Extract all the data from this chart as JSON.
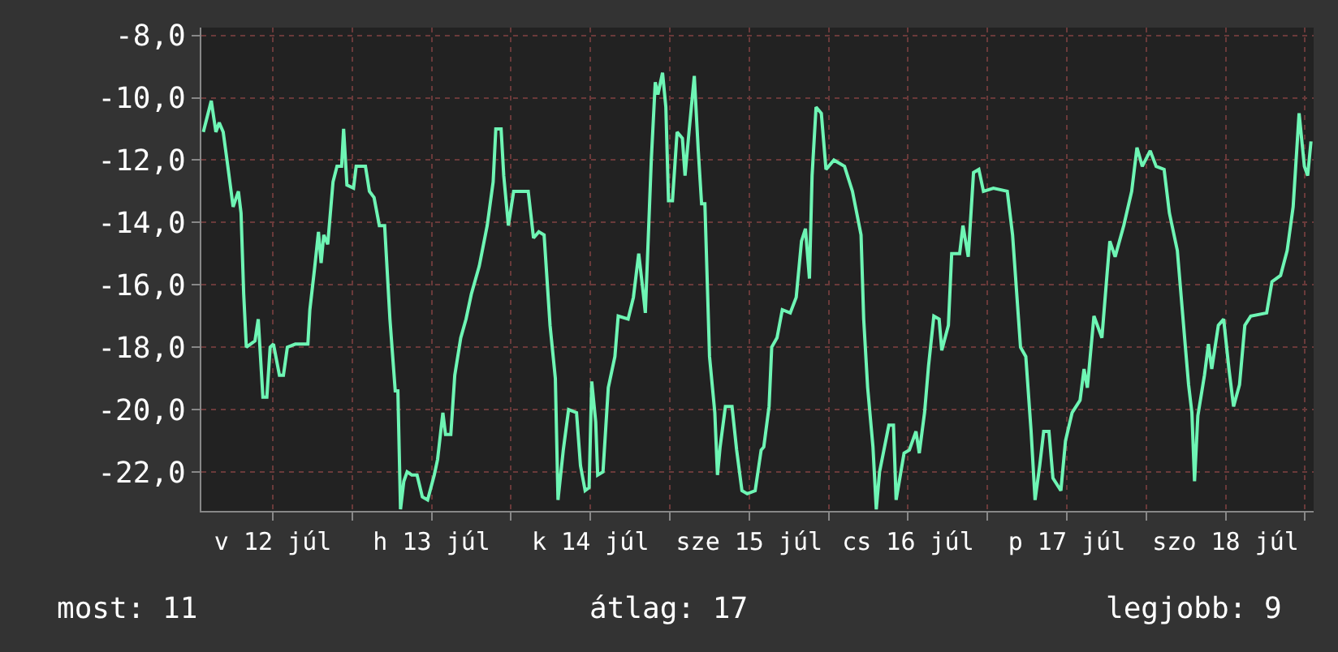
{
  "chart_data": {
    "type": "line",
    "x": [
      "--07-12T01:30",
      "--07-12T02:42",
      "--07-12T03:24",
      "--07-12T03:54",
      "--07-12T04:30",
      "--07-12T05:12",
      "--07-12T06:00",
      "--07-12T06:48",
      "--07-12T07:12",
      "--07-12T07:36",
      "--07-12T08:00",
      "--07-12T09:18",
      "--07-12T09:48",
      "--07-12T10:30",
      "--07-12T11:06",
      "--07-12T11:36",
      "--07-12T12:06",
      "--07-12T13:00",
      "--07-12T13:36",
      "--07-12T14:12",
      "--07-12T15:24",
      "--07-12T17:18",
      "--07-12T17:36",
      "--07-12T18:18",
      "--07-12T18:54",
      "--07-12T19:18",
      "--07-12T19:42",
      "--07-12T20:18",
      "--07-12T21:06",
      "--07-12T21:42",
      "--07-12T22:24",
      "--07-12T22:42",
      "--07-12T23:12",
      "--07-13T00:12",
      "--07-13T00:36",
      "--07-13T02:00",
      "--07-13T02:36",
      "--07-13T03:18",
      "--07-13T04:06",
      "--07-13T04:54",
      "--07-13T05:42",
      "--07-13T06:30",
      "--07-13T06:54",
      "--07-13T07:18",
      "--07-13T07:48",
      "--07-13T08:18",
      "--07-13T09:00",
      "--07-13T09:48",
      "--07-13T10:36",
      "--07-13T11:24",
      "--07-13T12:24",
      "--07-13T12:54",
      "--07-13T13:42",
      "--07-13T14:06",
      "--07-13T14:54",
      "--07-13T15:30",
      "--07-13T16:24",
      "--07-13T17:12",
      "--07-13T18:00",
      "--07-13T19:12",
      "--07-13T20:24",
      "--07-13T21:18",
      "--07-13T21:42",
      "--07-13T22:30",
      "--07-13T22:54",
      "--07-13T23:36",
      "--07-14T00:24",
      "--07-14T02:36",
      "--07-14T03:24",
      "--07-14T04:12",
      "--07-14T05:00",
      "--07-14T05:54",
      "--07-14T06:42",
      "--07-14T07:06",
      "--07-14T07:54",
      "--07-14T08:42",
      "--07-14T09:54",
      "--07-14T10:30",
      "--07-14T11:12",
      "--07-14T11:48",
      "--07-14T12:12",
      "--07-14T12:48",
      "--07-14T13:06",
      "--07-14T13:54",
      "--07-14T14:42",
      "--07-14T15:42",
      "--07-14T16:12",
      "--07-14T17:42",
      "--07-14T18:30",
      "--07-14T19:18",
      "--07-14T20:00",
      "--07-14T20:18",
      "--07-14T21:12",
      "--07-14T21:48",
      "--07-14T22:12",
      "--07-14T22:54",
      "--07-14T23:24",
      "--07-14T23:48",
      "--07-15T00:24",
      "--07-15T01:06",
      "--07-15T01:54",
      "--07-15T02:18",
      "--07-15T02:54",
      "--07-15T03:42",
      "--07-15T04:18",
      "--07-15T04:48",
      "--07-15T05:18",
      "--07-15T06:00",
      "--07-15T06:48",
      "--07-15T07:12",
      "--07-15T07:36",
      "--07-15T08:24",
      "--07-15T09:24",
      "--07-15T10:06",
      "--07-15T10:54",
      "--07-15T11:42",
      "--07-15T12:54",
      "--07-15T13:48",
      "--07-15T14:12",
      "--07-15T15:00",
      "--07-15T15:24",
      "--07-15T16:12",
      "--07-15T17:00",
      "--07-15T18:12",
      "--07-15T19:06",
      "--07-15T19:54",
      "--07-15T20:30",
      "--07-15T21:06",
      "--07-15T21:30",
      "--07-15T22:06",
      "--07-15T22:54",
      "--07-15T23:36",
      "--07-16T00:48",
      "--07-16T02:24",
      "--07-16T03:36",
      "--07-16T04:54",
      "--07-16T05:18",
      "--07-16T05:54",
      "--07-16T06:42",
      "--07-16T07:12",
      "--07-16T07:42",
      "--07-16T09:06",
      "--07-16T09:48",
      "--07-16T10:12",
      "--07-16T11:24",
      "--07-16T12:12",
      "--07-16T13:12",
      "--07-16T13:42",
      "--07-16T14:30",
      "--07-16T15:06",
      "--07-16T15:54",
      "--07-16T16:42",
      "--07-16T17:06",
      "--07-16T18:06",
      "--07-16T18:36",
      "--07-16T19:48",
      "--07-16T20:18",
      "--07-16T21:06",
      "--07-16T21:54",
      "--07-16T22:42",
      "--07-16T23:24",
      "--07-17T00:54",
      "--07-17T03:00",
      "--07-17T03:48",
      "--07-17T05:00",
      "--07-17T05:48",
      "--07-17T06:36",
      "--07-17T07:12",
      "--07-17T07:54",
      "--07-17T08:30",
      "--07-17T09:18",
      "--07-17T09:54",
      "--07-17T11:06",
      "--07-17T11:48",
      "--07-17T12:48",
      "--07-17T14:00",
      "--07-17T14:36",
      "--07-17T15:06",
      "--07-17T16:06",
      "--07-17T17:18",
      "--07-17T18:06",
      "--07-17T18:30",
      "--07-17T19:18",
      "--07-17T20:36",
      "--07-17T21:48",
      "--07-17T22:36",
      "--07-17T23:24",
      "--07-18T00:36",
      "--07-18T01:30",
      "--07-18T02:42",
      "--07-18T03:30",
      "--07-18T04:42",
      "--07-18T05:48",
      "--07-18T06:24",
      "--07-18T06:54",
      "--07-18T07:18",
      "--07-18T07:48",
      "--07-18T08:48",
      "--07-18T09:24",
      "--07-18T09:54",
      "--07-18T10:54",
      "--07-18T11:42",
      "--07-18T12:30",
      "--07-18T13:12",
      "--07-18T14:06",
      "--07-18T14:54",
      "--07-18T15:48",
      "--07-18T18:12",
      "--07-18T19:00",
      "--07-18T20:18",
      "--07-18T21:18",
      "--07-18T22:12",
      "--07-18T23:06",
      "--07-18T23:54",
      "--07-19T00:24",
      "--07-19T00:54"
    ],
    "series": [
      {
        "color": "#6ef5b4",
        "values": [
          -11.1,
          -10.1,
          -11.1,
          -10.8,
          -11.1,
          -12.2,
          -13.5,
          -13.0,
          -13.7,
          -16.3,
          -18.0,
          -17.8,
          -17.1,
          -19.6,
          -19.6,
          -18.0,
          -17.9,
          -18.9,
          -18.9,
          -18.0,
          -17.9,
          -17.9,
          -16.8,
          -15.5,
          -14.3,
          -15.3,
          -14.4,
          -14.7,
          -12.7,
          -12.2,
          -12.2,
          -11.0,
          -12.8,
          -12.9,
          -12.2,
          -12.2,
          -13.0,
          -13.2,
          -14.1,
          -14.1,
          -17.1,
          -19.4,
          -19.4,
          -23.2,
          -22.3,
          -22.0,
          -22.1,
          -22.1,
          -22.8,
          -22.9,
          -22.1,
          -21.6,
          -20.1,
          -20.8,
          -20.8,
          -18.9,
          -17.7,
          -17.1,
          -16.3,
          -15.4,
          -14.1,
          -12.7,
          -11.0,
          -11.0,
          -12.5,
          -14.1,
          -13.0,
          -13.0,
          -14.5,
          -14.3,
          -14.4,
          -17.3,
          -19.0,
          -22.9,
          -21.3,
          -20.0,
          -20.1,
          -21.8,
          -22.6,
          -22.5,
          -19.1,
          -20.4,
          -22.1,
          -22.0,
          -19.3,
          -18.3,
          -17.0,
          -17.1,
          -16.4,
          -15.0,
          -16.3,
          -16.9,
          -12.0,
          -9.5,
          -9.9,
          -9.2,
          -10.3,
          -13.3,
          -13.3,
          -11.1,
          -11.3,
          -12.5,
          -11.1,
          -9.3,
          -11.7,
          -13.4,
          -13.4,
          -18.3,
          -20.1,
          -22.1,
          -21.2,
          -19.9,
          -19.9,
          -21.3,
          -22.6,
          -22.7,
          -22.6,
          -21.3,
          -21.2,
          -19.9,
          -18.0,
          -17.7,
          -16.8,
          -16.9,
          -16.4,
          -14.6,
          -14.2,
          -15.8,
          -12.5,
          -10.3,
          -10.5,
          -12.3,
          -12.0,
          -12.2,
          -13.0,
          -14.4,
          -17.1,
          -19.3,
          -21.2,
          -23.2,
          -22.0,
          -20.5,
          -20.5,
          -22.9,
          -21.4,
          -21.3,
          -20.7,
          -21.4,
          -20.1,
          -18.6,
          -17.0,
          -17.1,
          -18.1,
          -17.3,
          -15.0,
          -15.0,
          -14.1,
          -15.1,
          -12.4,
          -12.3,
          -13.0,
          -12.9,
          -13.0,
          -14.4,
          -18.0,
          -18.3,
          -20.7,
          -22.9,
          -21.8,
          -20.7,
          -20.7,
          -22.2,
          -22.6,
          -21.0,
          -20.1,
          -19.7,
          -18.7,
          -19.3,
          -17.0,
          -17.7,
          -15.6,
          -14.6,
          -15.1,
          -14.1,
          -13.0,
          -11.6,
          -12.2,
          -11.7,
          -12.2,
          -12.3,
          -13.7,
          -14.9,
          -17.7,
          -19.2,
          -20.1,
          -22.3,
          -20.2,
          -18.9,
          -17.9,
          -18.7,
          -17.3,
          -17.1,
          -18.7,
          -19.9,
          -19.2,
          -17.3,
          -17.0,
          -16.9,
          -15.9,
          -15.7,
          -14.9,
          -13.5,
          -10.5,
          -12.2,
          -12.5,
          -11.4
        ]
      }
    ],
    "xlim": [
      "--07-12T01:12",
      "--07-19T01:18"
    ],
    "xticks": [
      {
        "value": "--07-12T12:00",
        "label": "v 12 júl"
      },
      {
        "value": "--07-13T00:00",
        "label": null
      },
      {
        "value": "--07-13T12:00",
        "label": "h 13 júl"
      },
      {
        "value": "--07-14T00:00",
        "label": null
      },
      {
        "value": "--07-14T12:00",
        "label": "k 14 júl"
      },
      {
        "value": "--07-15T00:00",
        "label": null
      },
      {
        "value": "--07-15T12:00",
        "label": "sze 15 júl"
      },
      {
        "value": "--07-16T00:00",
        "label": null
      },
      {
        "value": "--07-16T12:00",
        "label": "cs 16 júl"
      },
      {
        "value": "--07-17T00:00",
        "label": null
      },
      {
        "value": "--07-17T12:00",
        "label": "p 17 júl"
      },
      {
        "value": "--07-18T00:00",
        "label": null
      },
      {
        "value": "--07-18T12:00",
        "label": "szo 18 júl"
      },
      {
        "value": "--07-19T00:00",
        "label": null
      }
    ],
    "ylim": [
      -23.25,
      -7.75
    ],
    "yticks": [
      {
        "value": -8,
        "label": "-8,0"
      },
      {
        "value": -10,
        "label": "-10,0"
      },
      {
        "value": -12,
        "label": "-12,0"
      },
      {
        "value": -14,
        "label": "-14,0"
      },
      {
        "value": -16,
        "label": "-16,0"
      },
      {
        "value": -18,
        "label": "-18,0"
      },
      {
        "value": -20,
        "label": "-20,0"
      },
      {
        "value": -22,
        "label": "-22,0"
      }
    ],
    "grid": true,
    "marker": "none",
    "line_style": "solid",
    "annotations": [
      "most: 11",
      "átlag: 17",
      "legjobb: 9"
    ]
  }
}
